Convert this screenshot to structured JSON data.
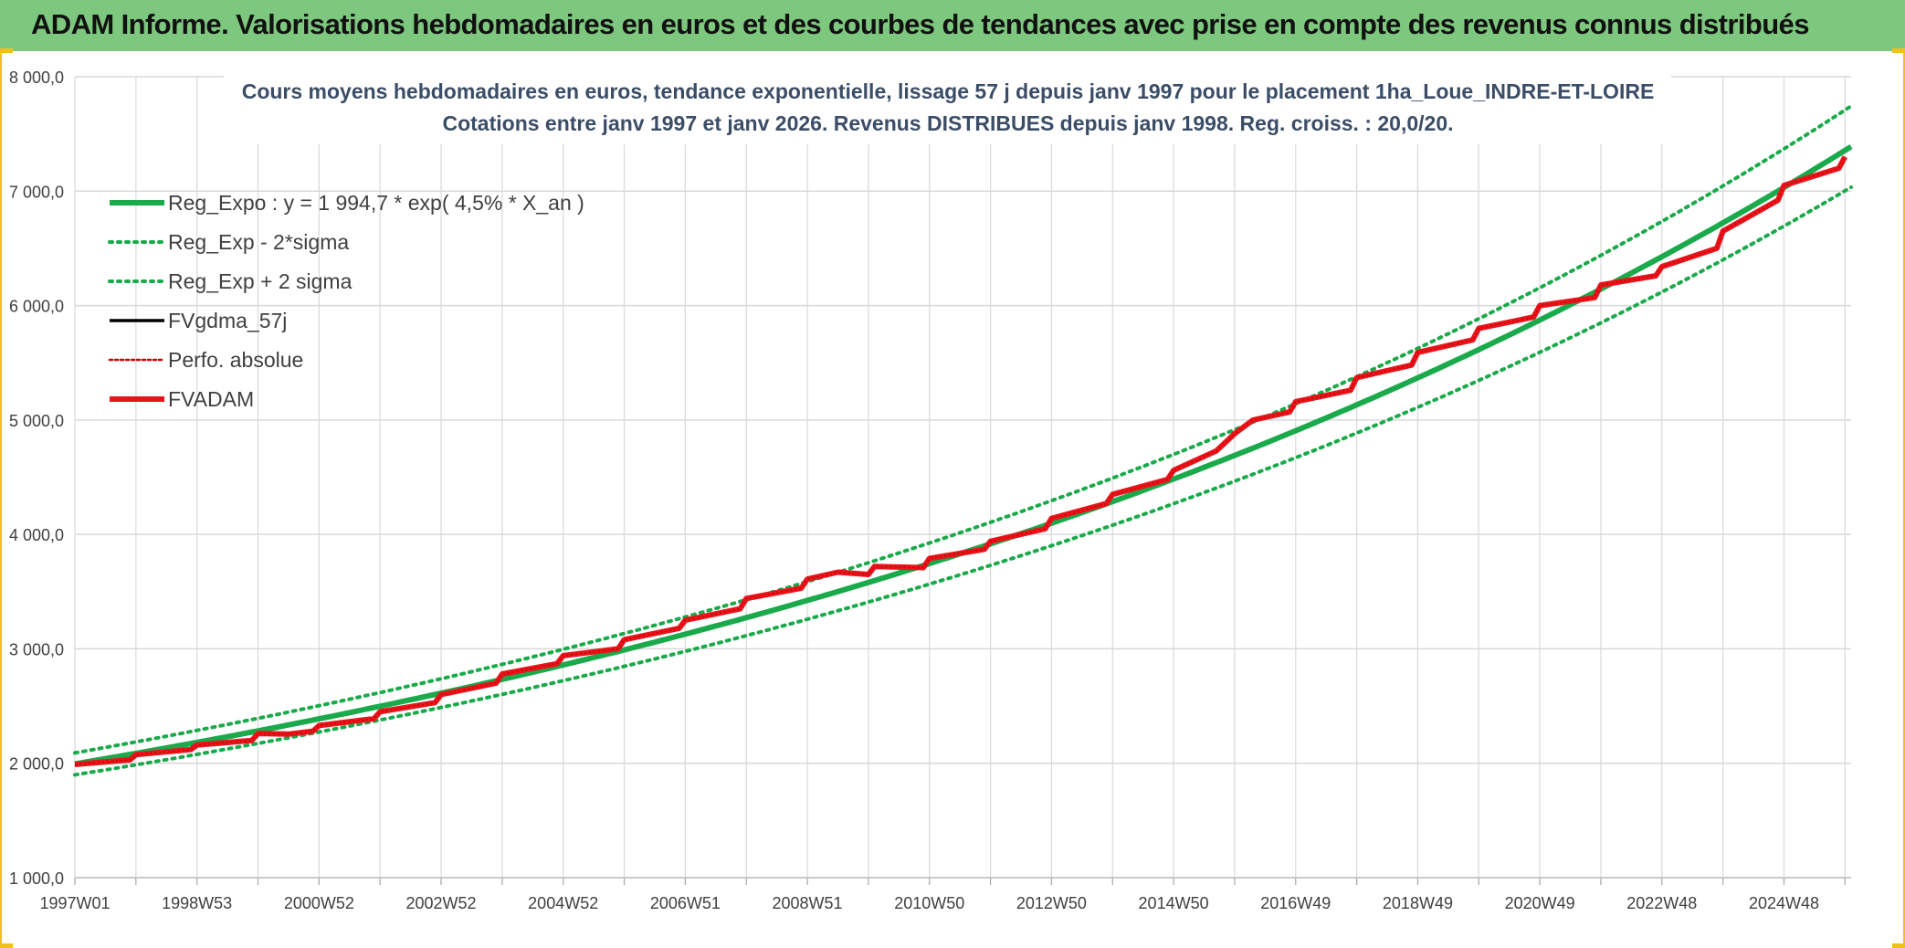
{
  "banner": {
    "title": "ADAM Informe. Valorisations hebdomadaires en euros et des courbes de tendances avec prise en compte des revenus connus distribués"
  },
  "colors": {
    "banner_bg": "#7dc87e",
    "reg_expo": "#1aaa4b",
    "sigma": "#1aaa4b",
    "fvgdma": "#000000",
    "perfo": "#cc0000",
    "fvadam": "#e8141b",
    "grid": "#d9d9d9",
    "title_text": "#3b4d66"
  },
  "chart_data": {
    "type": "line",
    "title_line1": "Cours moyens hebdomadaires en euros, tendance exponentielle, lissage 57 j depuis janv 1997 pour le placement 1ha_Loue_INDRE-ET-LOIRE",
    "title_line2": "Cotations entre janv 1997 et janv 2026. Revenus DISTRIBUES depuis janv 1998. Reg. croiss. : 20,0/20.",
    "xlabel": "",
    "ylabel": "",
    "x_range_years": [
      1997.0,
      2026.1
    ],
    "ylim": [
      1000,
      8000
    ],
    "y_ticks": [
      1000,
      2000,
      3000,
      4000,
      5000,
      6000,
      7000,
      8000
    ],
    "y_tick_labels": [
      "1 000,0",
      "2 000,0",
      "3 000,0",
      "4 000,0",
      "5 000,0",
      "6 000,0",
      "7 000,0",
      "8 000,0"
    ],
    "x_ticks": [
      {
        "label": "1997W01",
        "year": 1997.0
      },
      {
        "label": "1998W53",
        "year": 1999.0
      },
      {
        "label": "2000W52",
        "year": 2001.0
      },
      {
        "label": "2002W52",
        "year": 2003.0
      },
      {
        "label": "2004W52",
        "year": 2005.0
      },
      {
        "label": "2006W51",
        "year": 2007.0
      },
      {
        "label": "2008W51",
        "year": 2009.0
      },
      {
        "label": "2010W50",
        "year": 2011.0
      },
      {
        "label": "2012W50",
        "year": 2013.0
      },
      {
        "label": "2014W50",
        "year": 2015.0
      },
      {
        "label": "2016W49",
        "year": 2017.0
      },
      {
        "label": "2018W49",
        "year": 2019.0
      },
      {
        "label": "2020W49",
        "year": 2021.0
      },
      {
        "label": "2022W48",
        "year": 2023.0
      },
      {
        "label": "2024W48",
        "year": 2025.0
      }
    ],
    "grid": true,
    "legend_position": "top-left",
    "regression": {
      "a": 1994.7,
      "rate": 0.045,
      "sigma_factor": 0.048
    },
    "series": [
      {
        "name": "Reg_Expo : y = 1 994,7 * exp( 4,5% *  X_an )",
        "style": "solid-thick",
        "color": "#1aaa4b"
      },
      {
        "name": "Reg_Exp - 2*sigma",
        "style": "dotted",
        "color": "#1aaa4b"
      },
      {
        "name": "Reg_Exp + 2 sigma",
        "style": "dotted",
        "color": "#1aaa4b"
      },
      {
        "name": "FVgdma_57j",
        "style": "solid",
        "color": "#000000"
      },
      {
        "name": "Perfo. absolue",
        "style": "dotted-thin",
        "color": "#cc0000"
      },
      {
        "name": "FVADAM",
        "style": "solid-thick",
        "color": "#e8141b"
      }
    ],
    "fvadam_points": [
      [
        1997.0,
        1990
      ],
      [
        1997.9,
        2030
      ],
      [
        1998.0,
        2075
      ],
      [
        1998.9,
        2120
      ],
      [
        1999.0,
        2160
      ],
      [
        1999.9,
        2200
      ],
      [
        2000.0,
        2260
      ],
      [
        2000.5,
        2255
      ],
      [
        2000.9,
        2280
      ],
      [
        2001.0,
        2330
      ],
      [
        2001.9,
        2390
      ],
      [
        2002.0,
        2450
      ],
      [
        2002.9,
        2530
      ],
      [
        2003.0,
        2600
      ],
      [
        2003.9,
        2700
      ],
      [
        2004.0,
        2780
      ],
      [
        2004.9,
        2870
      ],
      [
        2005.0,
        2940
      ],
      [
        2005.9,
        3000
      ],
      [
        2006.0,
        3080
      ],
      [
        2006.9,
        3180
      ],
      [
        2007.0,
        3250
      ],
      [
        2007.9,
        3350
      ],
      [
        2008.0,
        3440
      ],
      [
        2008.9,
        3530
      ],
      [
        2009.0,
        3610
      ],
      [
        2009.5,
        3670
      ],
      [
        2010.0,
        3650
      ],
      [
        2010.1,
        3720
      ],
      [
        2010.9,
        3710
      ],
      [
        2011.0,
        3790
      ],
      [
        2011.9,
        3870
      ],
      [
        2012.0,
        3940
      ],
      [
        2012.9,
        4050
      ],
      [
        2013.0,
        4140
      ],
      [
        2013.9,
        4270
      ],
      [
        2014.0,
        4350
      ],
      [
        2014.9,
        4480
      ],
      [
        2015.0,
        4560
      ],
      [
        2015.7,
        4730
      ],
      [
        2016.0,
        4880
      ],
      [
        2016.3,
        5000
      ],
      [
        2016.9,
        5070
      ],
      [
        2017.0,
        5160
      ],
      [
        2017.9,
        5260
      ],
      [
        2018.0,
        5370
      ],
      [
        2018.9,
        5480
      ],
      [
        2019.0,
        5590
      ],
      [
        2019.9,
        5700
      ],
      [
        2020.0,
        5800
      ],
      [
        2020.9,
        5900
      ],
      [
        2021.0,
        6000
      ],
      [
        2021.9,
        6070
      ],
      [
        2022.0,
        6180
      ],
      [
        2022.9,
        6260
      ],
      [
        2023.0,
        6340
      ],
      [
        2023.9,
        6500
      ],
      [
        2024.0,
        6650
      ],
      [
        2024.9,
        6920
      ],
      [
        2025.0,
        7050
      ],
      [
        2025.3,
        7100
      ],
      [
        2025.9,
        7200
      ],
      [
        2026.0,
        7300
      ]
    ]
  }
}
